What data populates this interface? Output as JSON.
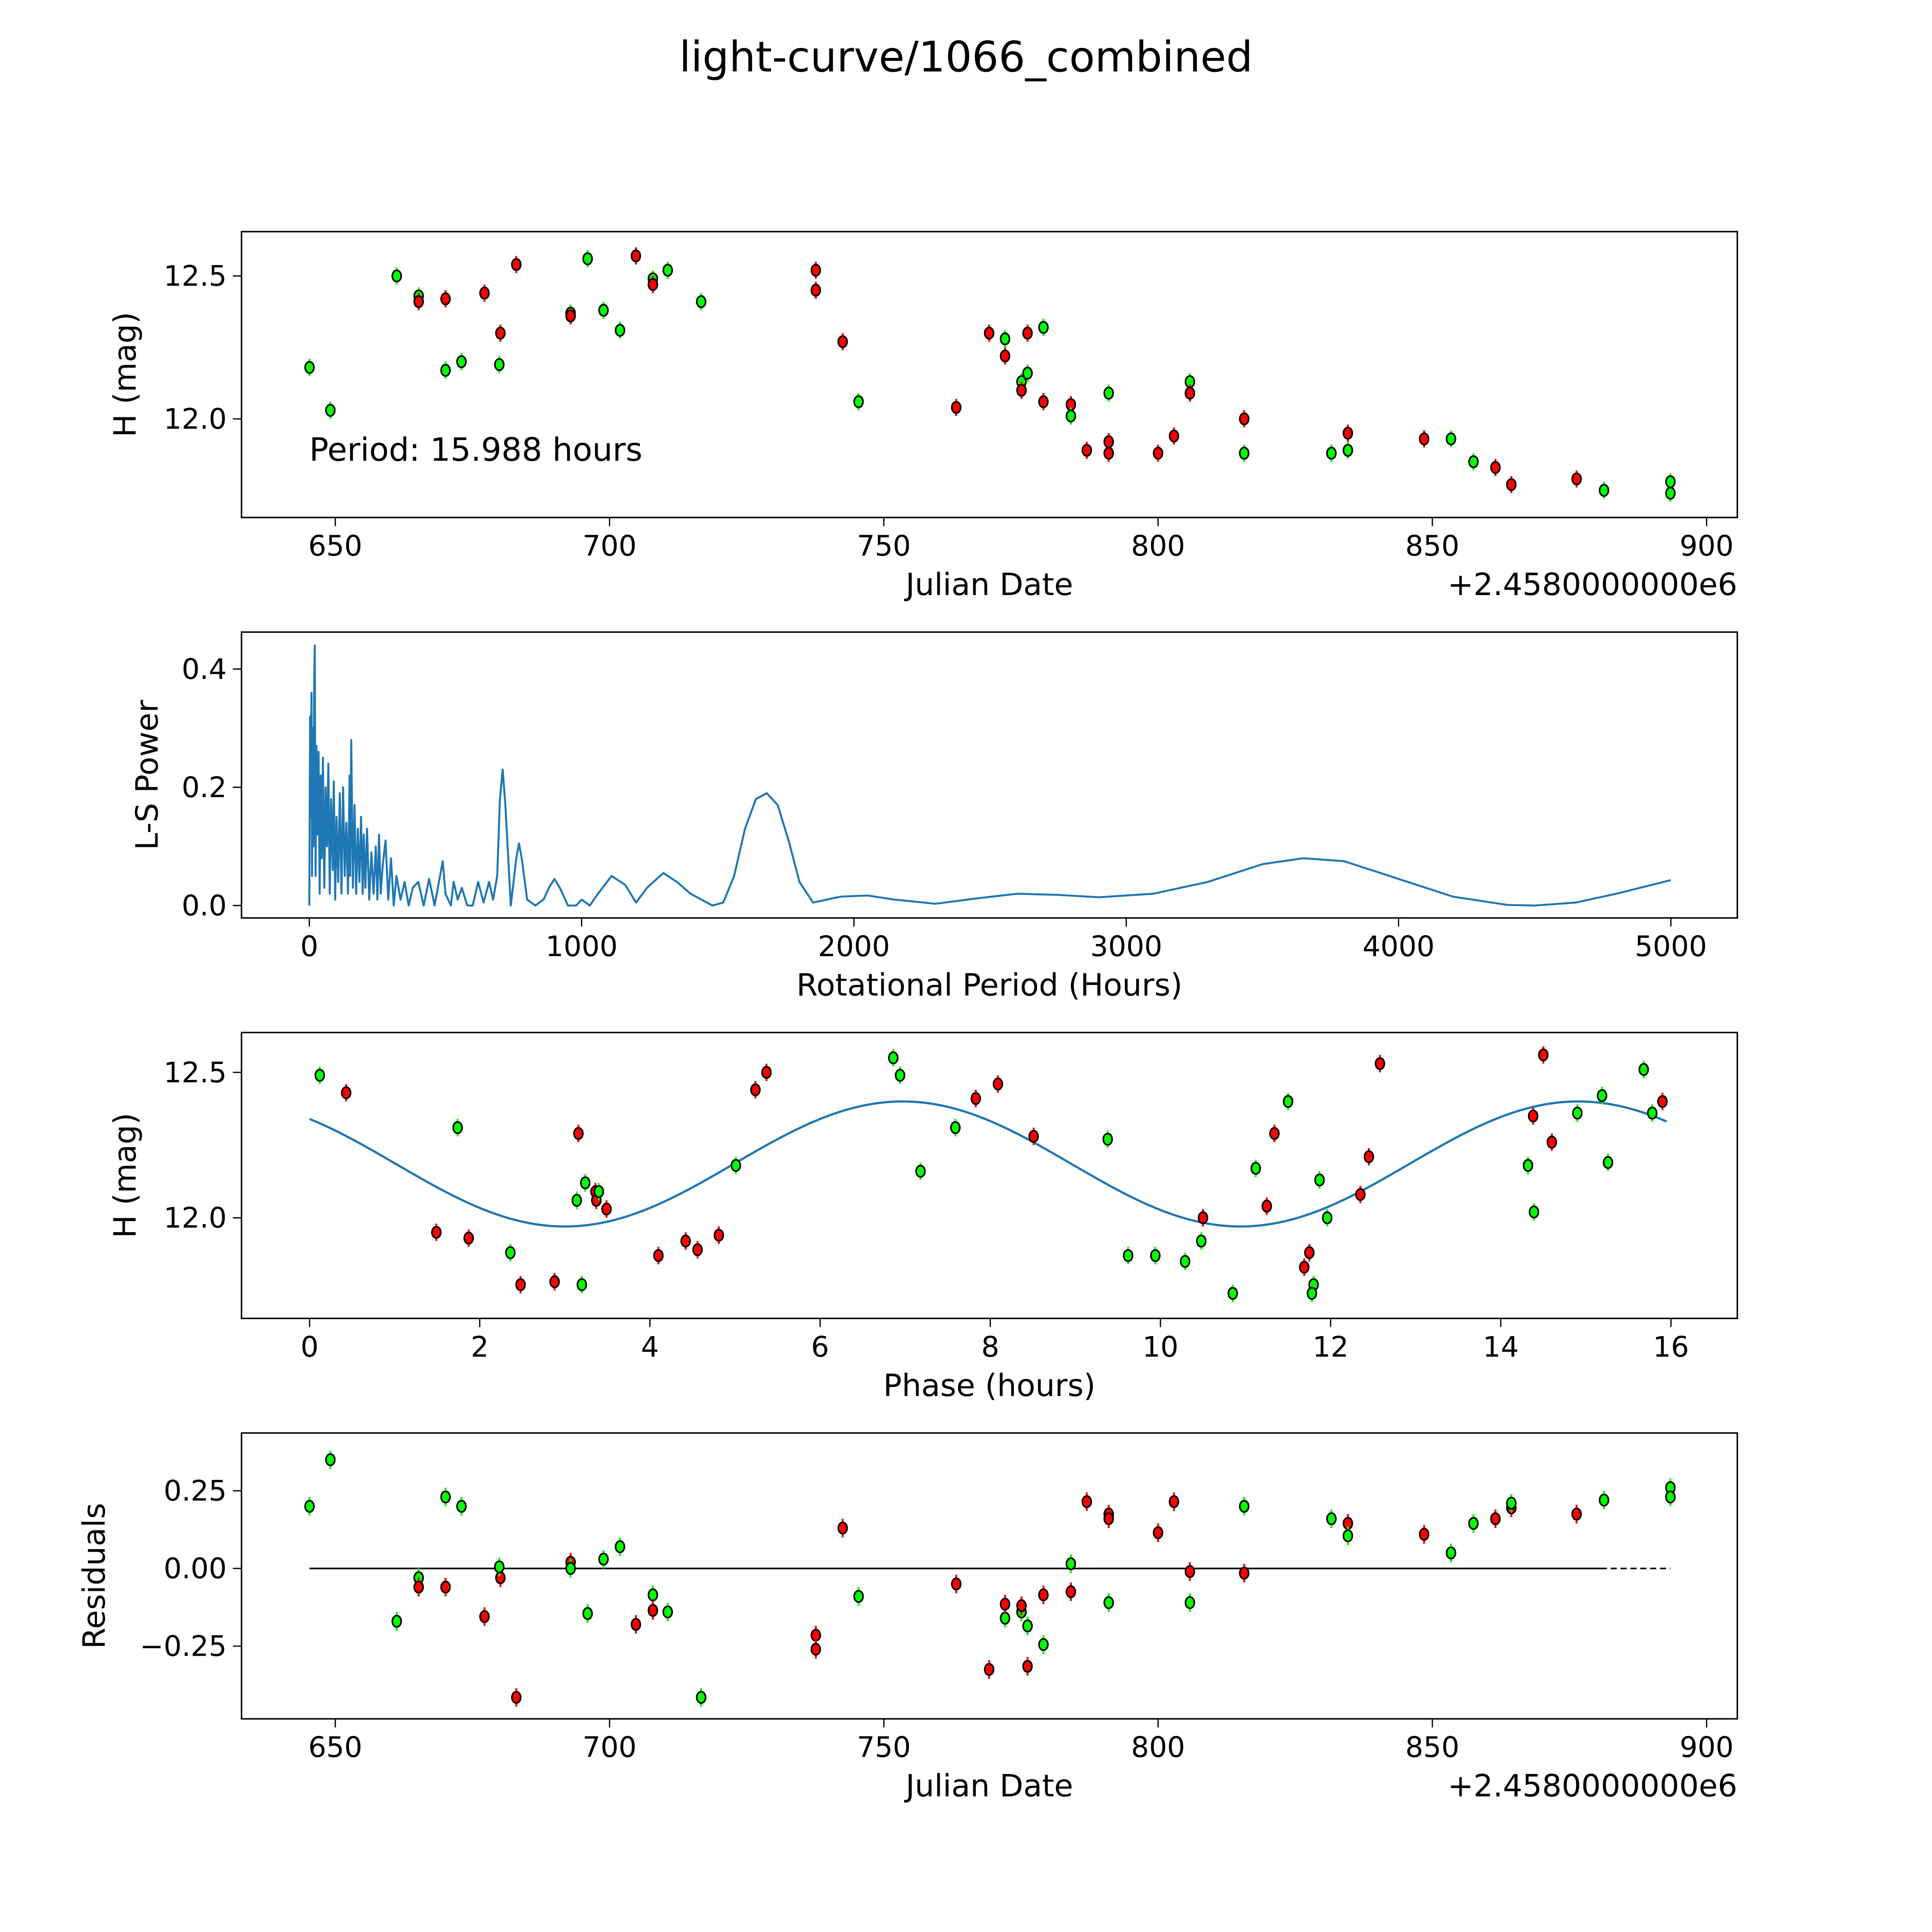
{
  "figure_title": "light-curve/1066_combined",
  "colors": {
    "green": "#00ff00",
    "red": "#ff0000",
    "line": "#1f77b4",
    "edge": "#000000"
  },
  "chart_data": [
    {
      "id": "lightcurve",
      "type": "scatter",
      "xlabel": "Julian Date",
      "ylabel": "H (mag)",
      "offset_text": "+2.4580000000e6",
      "annotation": "Period: 15.988 hours",
      "xlim": [
        632.9,
        905.6
      ],
      "ylim": [
        11.655,
        12.655
      ],
      "xticks": [
        650,
        700,
        750,
        800,
        850,
        900
      ],
      "xticklabels": [
        "650",
        "700",
        "750",
        "800",
        "850",
        "900"
      ],
      "yticks": [
        12.0,
        12.5
      ],
      "yticklabels": [
        "12.0",
        "12.5"
      ],
      "err": 0.03,
      "points": [
        [
          645.3,
          12.18,
          "g"
        ],
        [
          649.1,
          12.03,
          "g"
        ],
        [
          661.2,
          12.5,
          "g"
        ],
        [
          665.2,
          12.43,
          "g"
        ],
        [
          665.2,
          12.41,
          "r"
        ],
        [
          670.1,
          12.42,
          "r"
        ],
        [
          670.1,
          12.17,
          "g"
        ],
        [
          673.0,
          12.2,
          "g"
        ],
        [
          677.2,
          12.44,
          "r"
        ],
        [
          680.1,
          12.3,
          "r"
        ],
        [
          679.9,
          12.19,
          "g"
        ],
        [
          683.0,
          12.54,
          "r"
        ],
        [
          692.9,
          12.37,
          "g"
        ],
        [
          692.9,
          12.36,
          "r"
        ],
        [
          696.0,
          12.56,
          "g"
        ],
        [
          698.9,
          12.38,
          "g"
        ],
        [
          701.9,
          12.31,
          "g"
        ],
        [
          704.8,
          12.57,
          "r"
        ],
        [
          707.9,
          12.49,
          "g"
        ],
        [
          707.9,
          12.47,
          "r"
        ],
        [
          710.6,
          12.52,
          "g"
        ],
        [
          716.7,
          12.41,
          "g"
        ],
        [
          737.6,
          12.52,
          "r"
        ],
        [
          737.6,
          12.45,
          "r"
        ],
        [
          742.5,
          12.27,
          "r"
        ],
        [
          745.4,
          12.06,
          "g"
        ],
        [
          763.2,
          12.04,
          "r"
        ],
        [
          769.2,
          12.3,
          "r"
        ],
        [
          772.1,
          12.28,
          "g"
        ],
        [
          772.1,
          12.22,
          "r"
        ],
        [
          775.1,
          12.13,
          "g"
        ],
        [
          775.1,
          12.1,
          "r"
        ],
        [
          776.2,
          12.16,
          "g"
        ],
        [
          776.2,
          12.3,
          "r"
        ],
        [
          779.1,
          12.32,
          "g"
        ],
        [
          779.1,
          12.06,
          "r"
        ],
        [
          784.1,
          12.05,
          "r"
        ],
        [
          784.1,
          12.01,
          "g"
        ],
        [
          787.0,
          11.89,
          "r"
        ],
        [
          791.0,
          11.92,
          "r"
        ],
        [
          791.0,
          11.88,
          "r"
        ],
        [
          791.0,
          12.09,
          "g"
        ],
        [
          800.0,
          11.88,
          "r"
        ],
        [
          802.9,
          11.94,
          "r"
        ],
        [
          805.8,
          12.13,
          "g"
        ],
        [
          805.8,
          12.09,
          "r"
        ],
        [
          815.7,
          12.0,
          "r"
        ],
        [
          815.7,
          11.88,
          "g"
        ],
        [
          831.6,
          11.88,
          "g"
        ],
        [
          834.6,
          11.95,
          "r"
        ],
        [
          834.6,
          11.89,
          "g"
        ],
        [
          848.5,
          11.93,
          "r"
        ],
        [
          853.4,
          11.93,
          "g"
        ],
        [
          857.5,
          11.85,
          "g"
        ],
        [
          861.5,
          11.83,
          "r"
        ],
        [
          864.4,
          11.77,
          "r"
        ],
        [
          876.3,
          11.79,
          "r"
        ],
        [
          881.3,
          11.75,
          "g"
        ],
        [
          893.4,
          11.78,
          "g"
        ],
        [
          893.4,
          11.74,
          "g"
        ]
      ]
    },
    {
      "id": "periodogram",
      "type": "line",
      "xlabel": "Rotational Period (Hours)",
      "ylabel": "L-S Power",
      "xlim": [
        -249,
        5244
      ],
      "ylim": [
        -0.021,
        0.4625
      ],
      "xticks": [
        0,
        1000,
        2000,
        3000,
        4000,
        5000
      ],
      "xticklabels": [
        "0",
        "1000",
        "2000",
        "3000",
        "4000",
        "5000"
      ],
      "yticks": [
        0.0,
        0.2,
        0.4
      ],
      "yticklabels": [
        "0.0",
        "0.2",
        "0.4"
      ],
      "x": [
        0,
        3,
        5,
        8,
        10,
        13,
        15,
        18,
        20,
        23,
        26,
        30,
        34,
        38,
        42,
        46,
        50,
        55,
        60,
        65,
        70,
        75,
        80,
        86,
        90,
        95,
        100,
        106,
        112,
        118,
        124,
        130,
        136,
        142,
        148,
        150,
        154,
        160,
        166,
        172,
        178,
        184,
        190,
        196,
        200,
        206,
        212,
        220,
        228,
        236,
        244,
        250,
        256,
        262,
        270,
        280,
        290,
        300,
        310,
        320,
        335,
        350,
        365,
        380,
        400,
        420,
        440,
        460,
        480,
        490,
        500,
        520,
        530,
        545,
        560,
        580,
        600,
        620,
        640,
        660,
        675,
        690,
        700,
        710,
        720,
        740,
        760,
        770,
        780,
        800,
        830,
        860,
        880,
        900,
        920,
        950,
        980,
        1000,
        1030,
        1060,
        1110,
        1160,
        1200,
        1240,
        1300,
        1350,
        1400,
        1440,
        1480,
        1520,
        1560,
        1600,
        1640,
        1680,
        1720,
        1760,
        1800,
        1850,
        1900,
        1950,
        2050,
        2150,
        2300,
        2450,
        2600,
        2750,
        2900,
        3100,
        3300,
        3500,
        3650,
        3800,
        4000,
        4200,
        4400,
        4500,
        4650,
        4800,
        5000
      ],
      "y": [
        0.0,
        0.32,
        0.15,
        0.36,
        0.05,
        0.3,
        0.1,
        0.38,
        0.44,
        0.05,
        0.27,
        0.12,
        0.26,
        0.02,
        0.22,
        0.08,
        0.25,
        0.03,
        0.2,
        0.1,
        0.24,
        0.02,
        0.18,
        0.06,
        0.21,
        0.01,
        0.15,
        0.04,
        0.19,
        0.02,
        0.2,
        0.05,
        0.14,
        0.02,
        0.22,
        0.05,
        0.28,
        0.03,
        0.17,
        0.02,
        0.13,
        0.04,
        0.15,
        0.02,
        0.12,
        0.03,
        0.13,
        0.01,
        0.09,
        0.02,
        0.1,
        0.01,
        0.12,
        0.02,
        0.07,
        0.11,
        0.01,
        0.08,
        0.0,
        0.05,
        0.01,
        0.04,
        0.0,
        0.03,
        0.04,
        0.0,
        0.045,
        0.0,
        0.05,
        0.075,
        0.02,
        0.0,
        0.04,
        0.01,
        0.03,
        0.0,
        0.0,
        0.04,
        0.005,
        0.04,
        0.01,
        0.05,
        0.18,
        0.23,
        0.17,
        0.0,
        0.08,
        0.105,
        0.08,
        0.01,
        0.0,
        0.01,
        0.03,
        0.045,
        0.03,
        0.0,
        0.0,
        0.01,
        0.0,
        0.02,
        0.05,
        0.035,
        0.005,
        0.03,
        0.055,
        0.04,
        0.02,
        0.01,
        0.0,
        0.005,
        0.05,
        0.13,
        0.18,
        0.19,
        0.17,
        0.11,
        0.04,
        0.005,
        0.01,
        0.015,
        0.017,
        0.01,
        0.003,
        0.012,
        0.02,
        0.018,
        0.014,
        0.02,
        0.04,
        0.07,
        0.08,
        0.075,
        0.045,
        0.015,
        0.001,
        0.0,
        0.005,
        0.02,
        0.043
      ]
    },
    {
      "id": "phased",
      "type": "scatter",
      "xlabel": "Phase (hours)",
      "ylabel": "H (mag)",
      "xlim": [
        -0.8,
        16.78
      ],
      "ylim": [
        11.654,
        12.637
      ],
      "xticks": [
        0,
        2,
        4,
        6,
        8,
        10,
        12,
        14,
        16
      ],
      "xticklabels": [
        "0",
        "2",
        "4",
        "6",
        "8",
        "10",
        "12",
        "14",
        "16"
      ],
      "yticks": [
        12.0,
        12.5
      ],
      "yticklabels": [
        "12.0",
        "12.5"
      ],
      "err": 0.03,
      "model": {
        "mean": 12.185,
        "amplitude": 0.215,
        "peak_phase": 6.97,
        "cycle": 7.94,
        "range": [
          0,
          15.99
        ]
      },
      "points": [
        [
          0.12,
          12.49,
          "g"
        ],
        [
          0.43,
          12.43,
          "r"
        ],
        [
          1.49,
          11.95,
          "r"
        ],
        [
          1.74,
          12.31,
          "g"
        ],
        [
          1.87,
          11.93,
          "r"
        ],
        [
          2.36,
          11.88,
          "g"
        ],
        [
          2.48,
          11.77,
          "r"
        ],
        [
          2.88,
          11.78,
          "r"
        ],
        [
          3.16,
          12.29,
          "r"
        ],
        [
          3.14,
          12.06,
          "g"
        ],
        [
          3.2,
          11.77,
          "g"
        ],
        [
          3.24,
          12.12,
          "g"
        ],
        [
          3.36,
          12.09,
          "r"
        ],
        [
          3.37,
          12.06,
          "r"
        ],
        [
          3.4,
          12.09,
          "g"
        ],
        [
          3.49,
          12.03,
          "r"
        ],
        [
          4.1,
          11.87,
          "r"
        ],
        [
          4.42,
          11.92,
          "r"
        ],
        [
          4.56,
          11.89,
          "r"
        ],
        [
          4.81,
          11.94,
          "r"
        ],
        [
          5.01,
          12.18,
          "g"
        ],
        [
          5.24,
          12.44,
          "r"
        ],
        [
          5.37,
          12.5,
          "r"
        ],
        [
          6.86,
          12.55,
          "g"
        ],
        [
          6.94,
          12.49,
          "g"
        ],
        [
          7.18,
          12.16,
          "g"
        ],
        [
          7.59,
          12.31,
          "g"
        ],
        [
          7.83,
          12.41,
          "r"
        ],
        [
          8.09,
          12.46,
          "r"
        ],
        [
          8.51,
          12.28,
          "r"
        ],
        [
          9.38,
          12.27,
          "g"
        ],
        [
          9.62,
          11.87,
          "g"
        ],
        [
          9.94,
          11.87,
          "g"
        ],
        [
          10.29,
          11.85,
          "g"
        ],
        [
          10.5,
          12.0,
          "r"
        ],
        [
          10.48,
          11.92,
          "g"
        ],
        [
          10.85,
          11.74,
          "g"
        ],
        [
          11.12,
          12.17,
          "g"
        ],
        [
          11.25,
          12.04,
          "r"
        ],
        [
          11.34,
          12.29,
          "r"
        ],
        [
          11.5,
          12.4,
          "g"
        ],
        [
          11.69,
          11.83,
          "r"
        ],
        [
          11.75,
          11.88,
          "r"
        ],
        [
          11.8,
          11.77,
          "g"
        ],
        [
          11.78,
          11.74,
          "g"
        ],
        [
          11.87,
          12.13,
          "g"
        ],
        [
          11.96,
          12.0,
          "g"
        ],
        [
          12.35,
          12.08,
          "r"
        ],
        [
          12.45,
          12.21,
          "r"
        ],
        [
          12.58,
          12.53,
          "r"
        ],
        [
          14.32,
          12.18,
          "g"
        ],
        [
          14.38,
          12.35,
          "r"
        ],
        [
          14.39,
          12.02,
          "g"
        ],
        [
          14.5,
          12.56,
          "r"
        ],
        [
          14.6,
          12.26,
          "r"
        ],
        [
          14.9,
          12.36,
          "g"
        ],
        [
          15.19,
          12.42,
          "g"
        ],
        [
          15.26,
          12.19,
          "g"
        ],
        [
          15.68,
          12.51,
          "g"
        ],
        [
          15.78,
          12.36,
          "g"
        ],
        [
          15.9,
          12.4,
          "r"
        ]
      ]
    },
    {
      "id": "residuals",
      "type": "scatter",
      "xlabel": "Julian Date",
      "ylabel": "Residuals",
      "offset_text": "+2.4580000000e6",
      "xlim": [
        632.9,
        905.6
      ],
      "ylim": [
        -0.484,
        0.436
      ],
      "xticks": [
        650,
        700,
        750,
        800,
        850,
        900
      ],
      "xticklabels": [
        "650",
        "700",
        "750",
        "800",
        "850",
        "900"
      ],
      "yticks": [
        -0.25,
        0.0,
        0.25
      ],
      "yticklabels": [
        "−0.25",
        "0.00",
        "0.25"
      ],
      "err": 0.03,
      "zero_dashed": [
        645.3,
        893.4
      ],
      "zero_solid": [
        645.3,
        881.3
      ],
      "points": [
        [
          645.3,
          0.2,
          "g"
        ],
        [
          649.1,
          0.35,
          "g"
        ],
        [
          661.2,
          -0.17,
          "g"
        ],
        [
          665.2,
          -0.03,
          "g"
        ],
        [
          665.2,
          -0.06,
          "r"
        ],
        [
          670.1,
          -0.06,
          "r"
        ],
        [
          670.1,
          0.23,
          "g"
        ],
        [
          673.0,
          0.2,
          "g"
        ],
        [
          677.2,
          -0.155,
          "r"
        ],
        [
          680.1,
          -0.03,
          "r"
        ],
        [
          679.9,
          0.005,
          "g"
        ],
        [
          683.0,
          -0.415,
          "r"
        ],
        [
          692.9,
          0.02,
          "r"
        ],
        [
          692.9,
          0.0,
          "g"
        ],
        [
          696.0,
          -0.145,
          "g"
        ],
        [
          698.9,
          0.03,
          "g"
        ],
        [
          701.9,
          0.07,
          "g"
        ],
        [
          704.8,
          -0.18,
          "r"
        ],
        [
          707.9,
          -0.085,
          "g"
        ],
        [
          707.9,
          -0.135,
          "r"
        ],
        [
          710.6,
          -0.14,
          "g"
        ],
        [
          716.7,
          -0.415,
          "g"
        ],
        [
          737.6,
          -0.215,
          "r"
        ],
        [
          737.6,
          -0.26,
          "r"
        ],
        [
          742.5,
          0.13,
          "r"
        ],
        [
          745.4,
          -0.09,
          "g"
        ],
        [
          763.2,
          -0.05,
          "r"
        ],
        [
          769.2,
          -0.325,
          "r"
        ],
        [
          772.1,
          -0.16,
          "g"
        ],
        [
          772.1,
          -0.115,
          "r"
        ],
        [
          775.1,
          -0.14,
          "g"
        ],
        [
          775.1,
          -0.12,
          "r"
        ],
        [
          776.2,
          -0.185,
          "g"
        ],
        [
          776.2,
          -0.315,
          "r"
        ],
        [
          779.1,
          -0.245,
          "g"
        ],
        [
          779.1,
          -0.085,
          "r"
        ],
        [
          784.1,
          -0.075,
          "r"
        ],
        [
          784.1,
          0.015,
          "g"
        ],
        [
          787.0,
          0.215,
          "r"
        ],
        [
          791.0,
          0.175,
          "r"
        ],
        [
          791.0,
          0.16,
          "r"
        ],
        [
          791.0,
          -0.11,
          "g"
        ],
        [
          800.0,
          0.115,
          "r"
        ],
        [
          802.9,
          0.215,
          "r"
        ],
        [
          805.8,
          -0.01,
          "r"
        ],
        [
          805.8,
          -0.11,
          "g"
        ],
        [
          815.7,
          -0.015,
          "r"
        ],
        [
          815.7,
          0.2,
          "g"
        ],
        [
          831.6,
          0.16,
          "g"
        ],
        [
          834.6,
          0.145,
          "r"
        ],
        [
          834.6,
          0.105,
          "g"
        ],
        [
          848.5,
          0.11,
          "r"
        ],
        [
          853.4,
          0.05,
          "g"
        ],
        [
          857.5,
          0.145,
          "g"
        ],
        [
          861.5,
          0.16,
          "r"
        ],
        [
          864.4,
          0.195,
          "r"
        ],
        [
          864.4,
          0.21,
          "g"
        ],
        [
          876.3,
          0.175,
          "r"
        ],
        [
          881.3,
          0.22,
          "g"
        ],
        [
          893.4,
          0.26,
          "g"
        ],
        [
          893.4,
          0.23,
          "g"
        ]
      ]
    }
  ]
}
